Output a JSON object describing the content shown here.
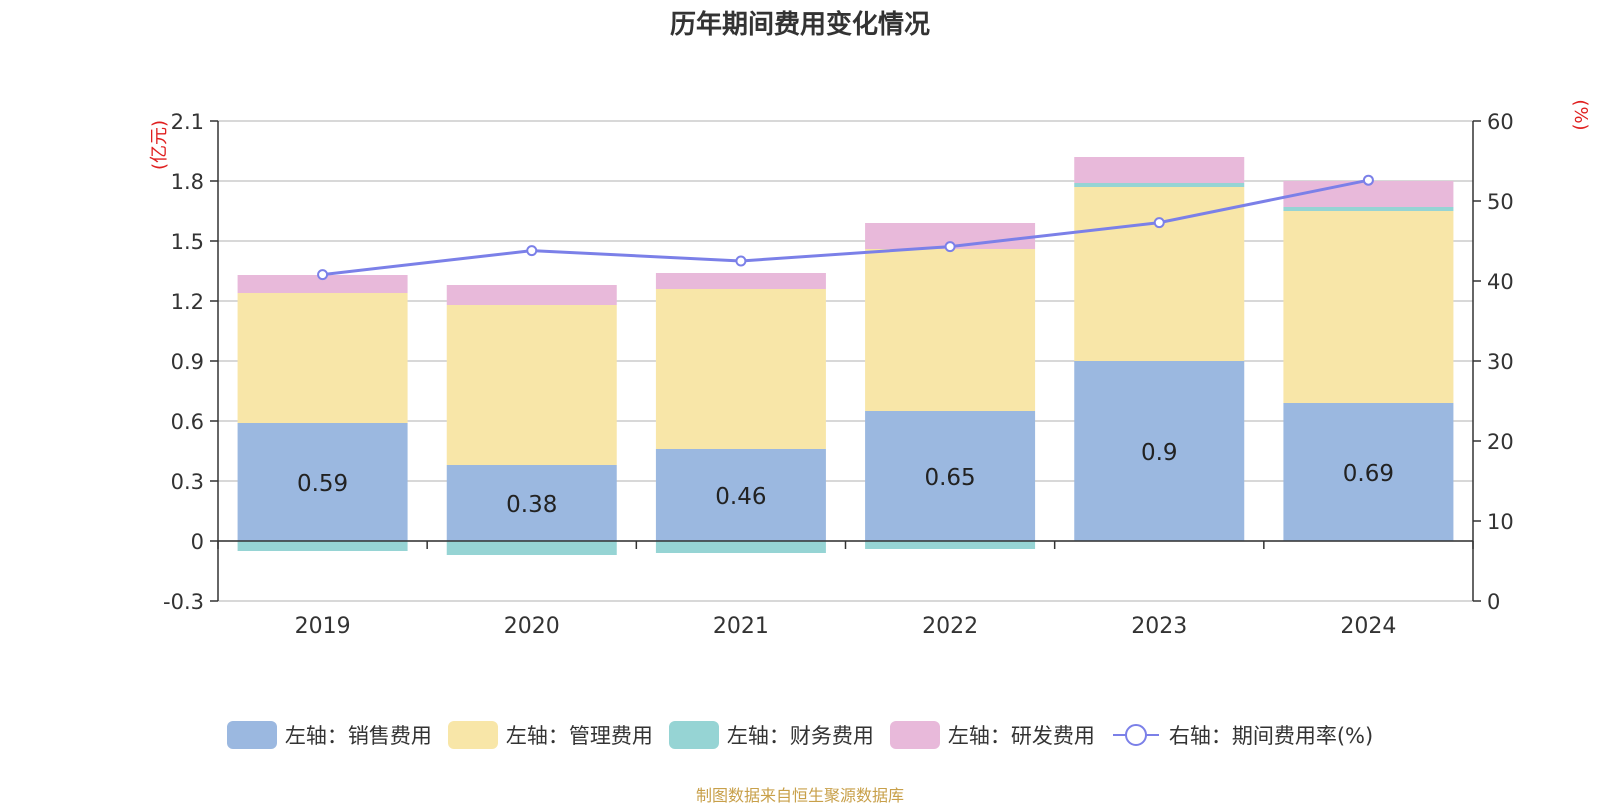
{
  "title": "历年期间费用变化情况",
  "source": "制图数据来自恒生聚源数据库",
  "chart_data": {
    "type": "bar",
    "stacked": true,
    "categories": [
      "2019",
      "2020",
      "2021",
      "2022",
      "2023",
      "2024"
    ],
    "left_axis": {
      "unit_label": "(亿元)",
      "ylim": [
        -0.3,
        2.1
      ],
      "ticks": [
        "-0.3",
        "0",
        "0.3",
        "0.6",
        "0.9",
        "1.2",
        "1.5",
        "1.8",
        "2.1"
      ]
    },
    "right_axis": {
      "unit_label": "(%)",
      "ylim": [
        0,
        60
      ],
      "ticks": [
        "0",
        "10",
        "20",
        "30",
        "40",
        "50",
        "60"
      ]
    },
    "series": [
      {
        "name": "左轴：销售费用",
        "axis": "left",
        "type": "bar",
        "color": "#9bb8e0",
        "values": [
          0.59,
          0.38,
          0.46,
          0.65,
          0.9,
          0.69
        ],
        "labels": [
          "0.59",
          "0.38",
          "0.46",
          "0.65",
          "0.9",
          "0.69"
        ]
      },
      {
        "name": "左轴：管理费用",
        "axis": "left",
        "type": "bar",
        "color": "#f8e6a8",
        "values": [
          0.65,
          0.8,
          0.8,
          0.81,
          0.87,
          0.96
        ]
      },
      {
        "name": "左轴：财务费用",
        "axis": "left",
        "type": "bar",
        "color": "#96d4d4",
        "values": [
          -0.05,
          -0.07,
          -0.06,
          -0.04,
          0.02,
          0.02
        ]
      },
      {
        "name": "左轴：研发费用",
        "axis": "left",
        "type": "bar",
        "color": "#e8b9da",
        "values": [
          0.09,
          0.1,
          0.08,
          0.13,
          0.13,
          0.13
        ]
      },
      {
        "name": "右轴：期间费用率(%)",
        "axis": "right",
        "type": "line",
        "color": "#7b80e8",
        "values": [
          40.8,
          43.8,
          42.5,
          44.3,
          47.3,
          52.6
        ]
      }
    ],
    "grid": true,
    "legend_position": "bottom"
  }
}
